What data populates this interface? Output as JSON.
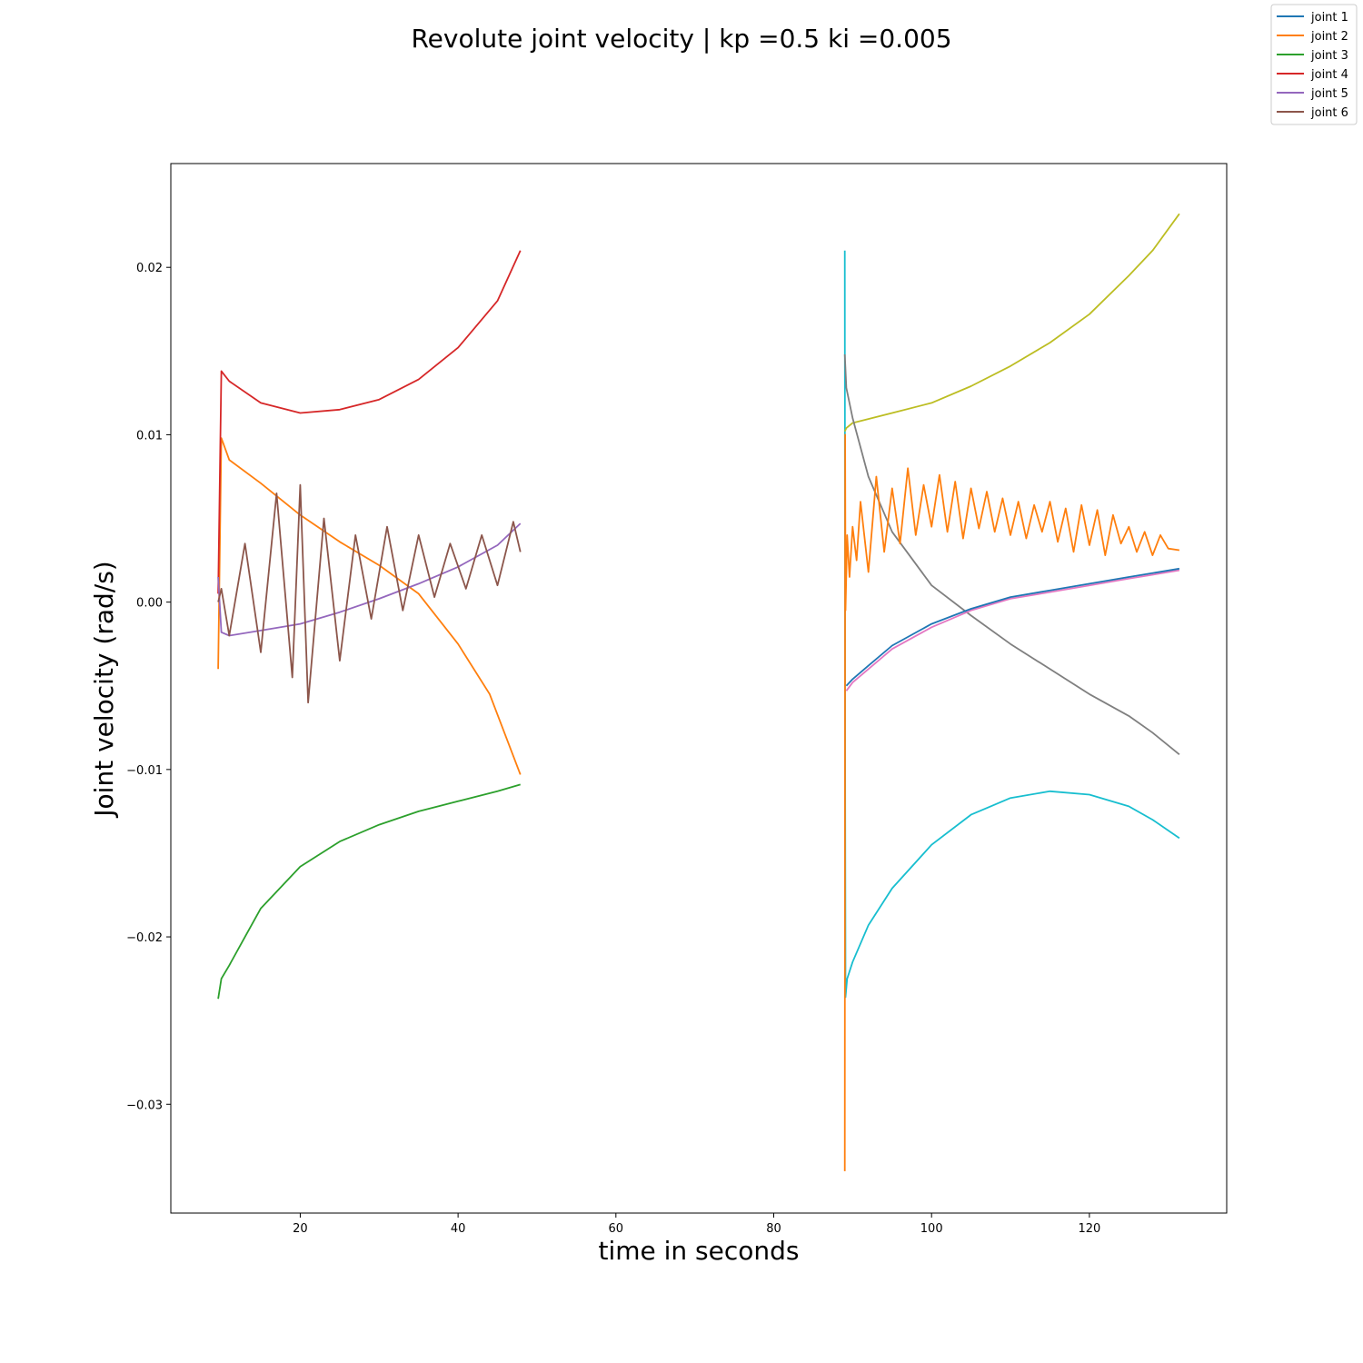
{
  "chart_data": {
    "type": "line",
    "title": "Revolute joint velocity | kp =0.5 ki =0.005",
    "xlabel": "time in seconds",
    "ylabel": "Joint velocity (rad/s)",
    "xlim": [
      3.6,
      137.4
    ],
    "ylim": [
      -0.0365,
      0.0262
    ],
    "xticks": [
      20,
      40,
      60,
      80,
      100,
      120
    ],
    "yticks": [
      -0.03,
      -0.02,
      -0.01,
      0.0,
      0.01,
      0.02
    ],
    "ytick_labels": [
      "−0.03",
      "−0.02",
      "−0.01",
      "0.00",
      "0.01",
      "0.02"
    ],
    "grid": false,
    "legend_position": "top-right",
    "legend": [
      "joint 1",
      "joint 2",
      "joint 3",
      "joint 4",
      "joint 5",
      "joint 6"
    ],
    "segments": [
      {
        "t_start": 9.6,
        "t_end": 47.9,
        "lines": [
          {
            "color": "#ff7f0e",
            "x": [
              9.6,
              10,
              11,
              15,
              20,
              25,
              30,
              35,
              40,
              44,
              47.9
            ],
            "y": [
              -0.004,
              0.0098,
              0.0085,
              0.0071,
              0.0052,
              0.0036,
              0.0022,
              0.0005,
              -0.0025,
              -0.0055,
              -0.0103
            ]
          },
          {
            "color": "#2ca02c",
            "x": [
              9.6,
              10,
              11,
              13,
              15,
              20,
              25,
              30,
              35,
              40,
              45,
              47.9
            ],
            "y": [
              -0.0237,
              -0.0225,
              -0.0217,
              -0.02,
              -0.0183,
              -0.0158,
              -0.0143,
              -0.0133,
              -0.0125,
              -0.0119,
              -0.0113,
              -0.0109
            ]
          },
          {
            "color": "#d62728",
            "x": [
              9.6,
              10,
              11,
              15,
              20,
              25,
              30,
              35,
              40,
              45,
              47.9
            ],
            "y": [
              0.0005,
              0.0138,
              0.0132,
              0.0119,
              0.0113,
              0.0115,
              0.0121,
              0.0133,
              0.0152,
              0.018,
              0.021
            ]
          },
          {
            "color": "#9467bd",
            "x": [
              9.6,
              10,
              11,
              15,
              20,
              25,
              30,
              35,
              40,
              45,
              47.9
            ],
            "y": [
              0.0015,
              -0.0018,
              -0.002,
              -0.0017,
              -0.0013,
              -0.0006,
              0.0002,
              0.0011,
              0.0021,
              0.0034,
              0.0047
            ]
          },
          {
            "color": "#8c564b",
            "x": [
              9.6,
              10,
              11,
              13,
              15,
              17,
              19,
              20,
              21,
              23,
              25,
              27,
              29,
              31,
              33,
              35,
              37,
              39,
              41,
              43,
              45,
              47,
              47.9
            ],
            "y": [
              0.0,
              0.0008,
              -0.002,
              0.0035,
              -0.003,
              0.0065,
              -0.0045,
              0.007,
              -0.006,
              0.005,
              -0.0035,
              0.004,
              -0.001,
              0.0045,
              -0.0005,
              0.004,
              0.0003,
              0.0035,
              0.0008,
              0.004,
              0.001,
              0.0048,
              0.003
            ]
          }
        ]
      },
      {
        "t_start": 89.0,
        "t_end": 131.4,
        "lines": [
          {
            "color": "#17becf",
            "x": [
              89.0,
              89.05,
              89.1,
              89.3,
              90,
              92,
              95,
              100,
              105,
              110,
              115,
              120,
              125,
              128,
              131.4
            ],
            "y": [
              0.021,
              -0.01,
              -0.0236,
              -0.0225,
              -0.0215,
              -0.0193,
              -0.0171,
              -0.0145,
              -0.0127,
              -0.0117,
              -0.0113,
              -0.0115,
              -0.0122,
              -0.013,
              -0.0141
            ]
          },
          {
            "color": "#bcbd22",
            "x": [
              89.0,
              89.2,
              90,
              95,
              100,
              105,
              110,
              115,
              120,
              125,
              128,
              131.4
            ],
            "y": [
              0.0102,
              0.0104,
              0.0107,
              0.0113,
              0.0119,
              0.0129,
              0.0141,
              0.0155,
              0.0172,
              0.0195,
              0.021,
              0.0232
            ]
          },
          {
            "color": "#7f7f7f",
            "x": [
              89.0,
              89.2,
              90,
              92,
              95,
              100,
              105,
              110,
              115,
              120,
              125,
              128,
              131.4
            ],
            "y": [
              0.0148,
              0.0128,
              0.011,
              0.0075,
              0.0042,
              0.001,
              -0.0008,
              -0.0025,
              -0.004,
              -0.0055,
              -0.0068,
              -0.0078,
              -0.0091
            ]
          },
          {
            "color": "#e377c2",
            "x": [
              89.2,
              90,
              92,
              95,
              100,
              105,
              110,
              115,
              120,
              125,
              131.4
            ],
            "y": [
              -0.0053,
              -0.0048,
              -0.004,
              -0.0028,
              -0.0015,
              -0.0005,
              0.0002,
              0.0006,
              0.001,
              0.0014,
              0.0019
            ]
          },
          {
            "color": "#1f77b4",
            "x": [
              89.2,
              90,
              92,
              95,
              100,
              105,
              110,
              115,
              120,
              125,
              131.4
            ],
            "y": [
              -0.005,
              -0.0046,
              -0.0038,
              -0.0026,
              -0.0013,
              -0.0004,
              0.0003,
              0.0007,
              0.0011,
              0.0015,
              0.002
            ]
          },
          {
            "color": "#ff7f0e",
            "x": [
              89.0,
              89.05,
              89.1,
              89.3,
              89.6,
              90,
              90.5,
              91,
              92,
              93,
              94,
              95,
              96,
              97,
              98,
              99,
              100,
              101,
              102,
              103,
              104,
              105,
              106,
              107,
              108,
              109,
              110,
              111,
              112,
              113,
              114,
              115,
              116,
              117,
              118,
              119,
              120,
              121,
              122,
              123,
              124,
              125,
              126,
              127,
              128,
              129,
              130,
              131.4
            ],
            "y": [
              -0.034,
              0.01,
              -0.0005,
              0.004,
              0.0015,
              0.0045,
              0.0025,
              0.006,
              0.0018,
              0.0075,
              0.003,
              0.0068,
              0.0035,
              0.008,
              0.004,
              0.007,
              0.0045,
              0.0076,
              0.0042,
              0.0072,
              0.0038,
              0.0068,
              0.0044,
              0.0066,
              0.0042,
              0.0062,
              0.004,
              0.006,
              0.0038,
              0.0058,
              0.0042,
              0.006,
              0.0036,
              0.0056,
              0.003,
              0.0058,
              0.0034,
              0.0055,
              0.0028,
              0.0052,
              0.0035,
              0.0045,
              0.003,
              0.0042,
              0.0028,
              0.004,
              0.0032,
              0.0031
            ]
          }
        ]
      }
    ],
    "legend_colors": [
      "#1f77b4",
      "#ff7f0e",
      "#2ca02c",
      "#d62728",
      "#9467bd",
      "#8c564b"
    ]
  }
}
